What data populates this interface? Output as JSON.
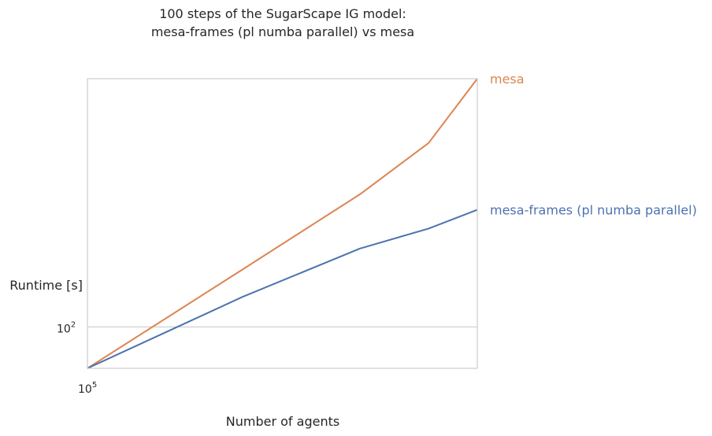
{
  "chart_data": {
    "type": "line",
    "title": [
      "100 steps of the SugarScape IG model:",
      "mesa-frames (pl numba parallel) vs mesa"
    ],
    "xlabel": "Number of agents",
    "ylabel": "Runtime [s]",
    "x_scale": "log",
    "y_scale": "log",
    "xlim": [
      100000,
      1000000
    ],
    "ylim": [
      63,
      1600
    ],
    "x_ticks": [
      {
        "value": 100000,
        "base": "10",
        "exp": "5"
      }
    ],
    "y_ticks": [
      {
        "value": 100,
        "base": "10",
        "exp": "2"
      }
    ],
    "grid": "y",
    "legend": "inline-right",
    "x": [
      100000,
      250000,
      500000,
      750000,
      1000000
    ],
    "series": [
      {
        "name": "mesa",
        "color": "#dd8452",
        "values": [
          63,
          190,
          440,
          780,
          1600
        ]
      },
      {
        "name": "mesa-frames (pl numba parallel)",
        "color": "#4c72b0",
        "values": [
          63,
          140,
          240,
          300,
          370
        ]
      }
    ]
  }
}
